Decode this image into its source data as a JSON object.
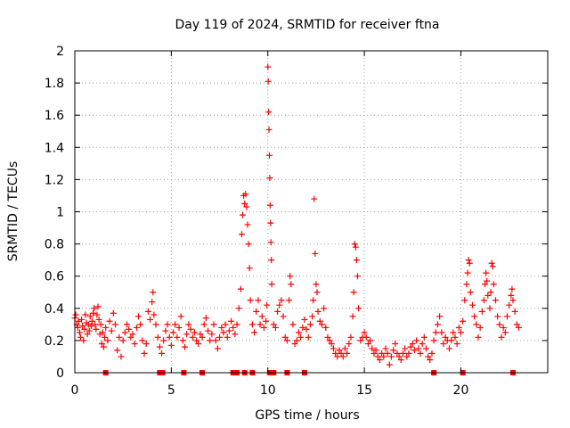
{
  "chart_data": {
    "type": "scatter",
    "title": "Day 119 of 2024, SRMTID for receiver ftna",
    "xlabel": "GPS time / hours",
    "ylabel": "SRMTID / TECUs",
    "xlim": [
      0,
      24.5
    ],
    "ylim": [
      0,
      2
    ],
    "grid": true,
    "marker": "+",
    "color": "#ff0000",
    "x_ticks": [
      0,
      5,
      10,
      15,
      20
    ],
    "x_tick_labels": [
      "0",
      "5",
      "10",
      "15",
      "20"
    ],
    "y_ticks": [
      0,
      0.2,
      0.4,
      0.6,
      0.8,
      1.0,
      1.2,
      1.4,
      1.6,
      1.8,
      2.0
    ],
    "y_tick_labels": [
      "0",
      "0.2",
      "0.4",
      "0.6",
      "0.8",
      "1",
      "1.2",
      "1.4",
      "1.6",
      "1.8",
      "2"
    ],
    "series": [
      {
        "name": "SRMTID",
        "points": [
          [
            0.0,
            0.34
          ],
          [
            0.05,
            0.36
          ],
          [
            0.1,
            0.3
          ],
          [
            0.15,
            0.28
          ],
          [
            0.2,
            0.32
          ],
          [
            0.25,
            0.25
          ],
          [
            0.3,
            0.22
          ],
          [
            0.35,
            0.33
          ],
          [
            0.4,
            0.29
          ],
          [
            0.45,
            0.2
          ],
          [
            0.5,
            0.27
          ],
          [
            0.55,
            0.36
          ],
          [
            0.6,
            0.31
          ],
          [
            0.65,
            0.24
          ],
          [
            0.7,
            0.3
          ],
          [
            0.75,
            0.26
          ],
          [
            0.8,
            0.35
          ],
          [
            0.85,
            0.29
          ],
          [
            0.9,
            0.32
          ],
          [
            0.95,
            0.37
          ],
          [
            1.0,
            0.4
          ],
          [
            1.05,
            0.3
          ],
          [
            1.1,
            0.27
          ],
          [
            1.15,
            0.36
          ],
          [
            1.2,
            0.41
          ],
          [
            1.25,
            0.33
          ],
          [
            1.3,
            0.24
          ],
          [
            1.35,
            0.3
          ],
          [
            1.4,
            0.18
          ],
          [
            1.45,
            0.25
          ],
          [
            1.5,
            0.16
          ],
          [
            1.55,
            0.22
          ],
          [
            1.6,
            0.28
          ],
          [
            1.7,
            0.2
          ],
          [
            1.8,
            0.32
          ],
          [
            1.9,
            0.26
          ],
          [
            2.0,
            0.37
          ],
          [
            2.1,
            0.3
          ],
          [
            2.2,
            0.14
          ],
          [
            2.3,
            0.22
          ],
          [
            2.4,
            0.1
          ],
          [
            2.5,
            0.2
          ],
          [
            2.6,
            0.25
          ],
          [
            2.7,
            0.3
          ],
          [
            2.8,
            0.27
          ],
          [
            2.9,
            0.22
          ],
          [
            3.0,
            0.24
          ],
          [
            3.1,
            0.18
          ],
          [
            3.2,
            0.28
          ],
          [
            3.3,
            0.35
          ],
          [
            3.4,
            0.3
          ],
          [
            3.5,
            0.2
          ],
          [
            3.6,
            0.12
          ],
          [
            3.7,
            0.18
          ],
          [
            3.8,
            0.38
          ],
          [
            3.9,
            0.33
          ],
          [
            4.0,
            0.44
          ],
          [
            4.05,
            0.5
          ],
          [
            4.1,
            0.36
          ],
          [
            4.2,
            0.3
          ],
          [
            4.3,
            0.22
          ],
          [
            4.4,
            0.16
          ],
          [
            4.5,
            0.12
          ],
          [
            4.6,
            0.2
          ],
          [
            4.7,
            0.26
          ],
          [
            4.8,
            0.3
          ],
          [
            4.9,
            0.22
          ],
          [
            5.0,
            0.17
          ],
          [
            5.1,
            0.25
          ],
          [
            5.2,
            0.3
          ],
          [
            5.3,
            0.22
          ],
          [
            5.4,
            0.28
          ],
          [
            5.5,
            0.35
          ],
          [
            5.6,
            0.2
          ],
          [
            5.7,
            0.16
          ],
          [
            5.8,
            0.24
          ],
          [
            5.9,
            0.3
          ],
          [
            6.0,
            0.27
          ],
          [
            6.1,
            0.22
          ],
          [
            6.2,
            0.25
          ],
          [
            6.3,
            0.2
          ],
          [
            6.4,
            0.18
          ],
          [
            6.5,
            0.24
          ],
          [
            6.6,
            0.22
          ],
          [
            6.7,
            0.3
          ],
          [
            6.8,
            0.34
          ],
          [
            6.9,
            0.26
          ],
          [
            7.0,
            0.2
          ],
          [
            7.1,
            0.24
          ],
          [
            7.2,
            0.3
          ],
          [
            7.3,
            0.2
          ],
          [
            7.4,
            0.15
          ],
          [
            7.5,
            0.22
          ],
          [
            7.6,
            0.28
          ],
          [
            7.7,
            0.25
          ],
          [
            7.8,
            0.3
          ],
          [
            7.9,
            0.22
          ],
          [
            8.0,
            0.26
          ],
          [
            8.1,
            0.32
          ],
          [
            8.2,
            0.28
          ],
          [
            8.3,
            0.24
          ],
          [
            8.4,
            0.3
          ],
          [
            8.5,
            0.4
          ],
          [
            8.6,
            0.52
          ],
          [
            8.65,
            0.86
          ],
          [
            8.7,
            0.98
          ],
          [
            8.75,
            1.1
          ],
          [
            8.8,
            1.05
          ],
          [
            8.85,
            1.11
          ],
          [
            8.9,
            1.03
          ],
          [
            8.95,
            0.92
          ],
          [
            9.0,
            0.8
          ],
          [
            9.05,
            0.65
          ],
          [
            9.1,
            0.45
          ],
          [
            9.2,
            0.3
          ],
          [
            9.3,
            0.25
          ],
          [
            9.4,
            0.38
          ],
          [
            9.5,
            0.45
          ],
          [
            9.6,
            0.3
          ],
          [
            9.7,
            0.35
          ],
          [
            9.8,
            0.28
          ],
          [
            9.9,
            0.32
          ],
          [
            9.95,
            0.42
          ],
          [
            10.0,
            1.9
          ],
          [
            10.02,
            1.81
          ],
          [
            10.04,
            1.62
          ],
          [
            10.06,
            1.51
          ],
          [
            10.08,
            1.35
          ],
          [
            10.1,
            1.21
          ],
          [
            10.12,
            1.04
          ],
          [
            10.14,
            0.93
          ],
          [
            10.16,
            0.81
          ],
          [
            10.18,
            0.7
          ],
          [
            10.2,
            0.55
          ],
          [
            10.3,
            0.3
          ],
          [
            10.4,
            0.28
          ],
          [
            10.5,
            0.38
          ],
          [
            10.6,
            0.42
          ],
          [
            10.7,
            0.45
          ],
          [
            10.8,
            0.35
          ],
          [
            10.9,
            0.22
          ],
          [
            11.0,
            0.2
          ],
          [
            11.1,
            0.45
          ],
          [
            11.15,
            0.6
          ],
          [
            11.2,
            0.55
          ],
          [
            11.3,
            0.3
          ],
          [
            11.4,
            0.18
          ],
          [
            11.5,
            0.2
          ],
          [
            11.6,
            0.25
          ],
          [
            11.7,
            0.22
          ],
          [
            11.8,
            0.28
          ],
          [
            11.9,
            0.33
          ],
          [
            12.0,
            0.27
          ],
          [
            12.1,
            0.22
          ],
          [
            12.2,
            0.3
          ],
          [
            12.3,
            0.35
          ],
          [
            12.35,
            0.45
          ],
          [
            12.4,
            1.08
          ],
          [
            12.45,
            0.74
          ],
          [
            12.5,
            0.55
          ],
          [
            12.55,
            0.5
          ],
          [
            12.6,
            0.38
          ],
          [
            12.7,
            0.32
          ],
          [
            12.8,
            0.3
          ],
          [
            12.9,
            0.4
          ],
          [
            13.0,
            0.28
          ],
          [
            13.1,
            0.22
          ],
          [
            13.2,
            0.2
          ],
          [
            13.3,
            0.18
          ],
          [
            13.4,
            0.15
          ],
          [
            13.5,
            0.12
          ],
          [
            13.6,
            0.1
          ],
          [
            13.7,
            0.14
          ],
          [
            13.8,
            0.12
          ],
          [
            13.9,
            0.1
          ],
          [
            14.0,
            0.15
          ],
          [
            14.1,
            0.12
          ],
          [
            14.2,
            0.18
          ],
          [
            14.3,
            0.22
          ],
          [
            14.4,
            0.35
          ],
          [
            14.45,
            0.5
          ],
          [
            14.5,
            0.8
          ],
          [
            14.55,
            0.78
          ],
          [
            14.6,
            0.7
          ],
          [
            14.65,
            0.6
          ],
          [
            14.7,
            0.4
          ],
          [
            14.8,
            0.2
          ],
          [
            14.9,
            0.22
          ],
          [
            15.0,
            0.25
          ],
          [
            15.1,
            0.22
          ],
          [
            15.2,
            0.18
          ],
          [
            15.3,
            0.2
          ],
          [
            15.4,
            0.15
          ],
          [
            15.5,
            0.12
          ],
          [
            15.6,
            0.14
          ],
          [
            15.7,
            0.1
          ],
          [
            15.8,
            0.08
          ],
          [
            15.9,
            0.12
          ],
          [
            16.0,
            0.1
          ],
          [
            16.1,
            0.15
          ],
          [
            16.2,
            0.12
          ],
          [
            16.3,
            0.05
          ],
          [
            16.4,
            0.1
          ],
          [
            16.5,
            0.14
          ],
          [
            16.6,
            0.18
          ],
          [
            16.7,
            0.12
          ],
          [
            16.8,
            0.1
          ],
          [
            16.9,
            0.08
          ],
          [
            17.0,
            0.12
          ],
          [
            17.1,
            0.15
          ],
          [
            17.2,
            0.1
          ],
          [
            17.3,
            0.12
          ],
          [
            17.4,
            0.16
          ],
          [
            17.5,
            0.18
          ],
          [
            17.6,
            0.14
          ],
          [
            17.7,
            0.2
          ],
          [
            17.8,
            0.15
          ],
          [
            17.9,
            0.12
          ],
          [
            18.0,
            0.18
          ],
          [
            18.1,
            0.22
          ],
          [
            18.2,
            0.15
          ],
          [
            18.3,
            0.1
          ],
          [
            18.4,
            0.08
          ],
          [
            18.5,
            0.12
          ],
          [
            18.6,
            0.2
          ],
          [
            18.7,
            0.25
          ],
          [
            18.8,
            0.3
          ],
          [
            18.9,
            0.35
          ],
          [
            19.0,
            0.25
          ],
          [
            19.1,
            0.18
          ],
          [
            19.2,
            0.22
          ],
          [
            19.3,
            0.2
          ],
          [
            19.4,
            0.15
          ],
          [
            19.5,
            0.2
          ],
          [
            19.6,
            0.25
          ],
          [
            19.7,
            0.22
          ],
          [
            19.8,
            0.18
          ],
          [
            19.9,
            0.28
          ],
          [
            20.0,
            0.25
          ],
          [
            20.1,
            0.32
          ],
          [
            20.2,
            0.45
          ],
          [
            20.3,
            0.55
          ],
          [
            20.35,
            0.62
          ],
          [
            20.4,
            0.7
          ],
          [
            20.45,
            0.68
          ],
          [
            20.5,
            0.5
          ],
          [
            20.6,
            0.42
          ],
          [
            20.7,
            0.35
          ],
          [
            20.8,
            0.3
          ],
          [
            20.9,
            0.22
          ],
          [
            21.0,
            0.28
          ],
          [
            21.1,
            0.38
          ],
          [
            21.2,
            0.45
          ],
          [
            21.25,
            0.55
          ],
          [
            21.3,
            0.62
          ],
          [
            21.35,
            0.57
          ],
          [
            21.4,
            0.48
          ],
          [
            21.5,
            0.4
          ],
          [
            21.55,
            0.5
          ],
          [
            21.6,
            0.68
          ],
          [
            21.65,
            0.66
          ],
          [
            21.7,
            0.55
          ],
          [
            21.8,
            0.45
          ],
          [
            21.9,
            0.35
          ],
          [
            22.0,
            0.3
          ],
          [
            22.1,
            0.22
          ],
          [
            22.2,
            0.28
          ],
          [
            22.3,
            0.25
          ],
          [
            22.4,
            0.35
          ],
          [
            22.5,
            0.42
          ],
          [
            22.6,
            0.48
          ],
          [
            22.65,
            0.52
          ],
          [
            22.7,
            0.45
          ],
          [
            22.8,
            0.38
          ],
          [
            22.9,
            0.3
          ],
          [
            23.0,
            0.28
          ]
        ]
      }
    ],
    "baseline_markers_x": [
      1.6,
      4.4,
      4.55,
      5.65,
      6.6,
      8.2,
      8.4,
      8.8,
      9.2,
      10.1,
      10.3,
      11.0,
      11.9,
      18.6,
      20.1,
      22.7
    ]
  }
}
